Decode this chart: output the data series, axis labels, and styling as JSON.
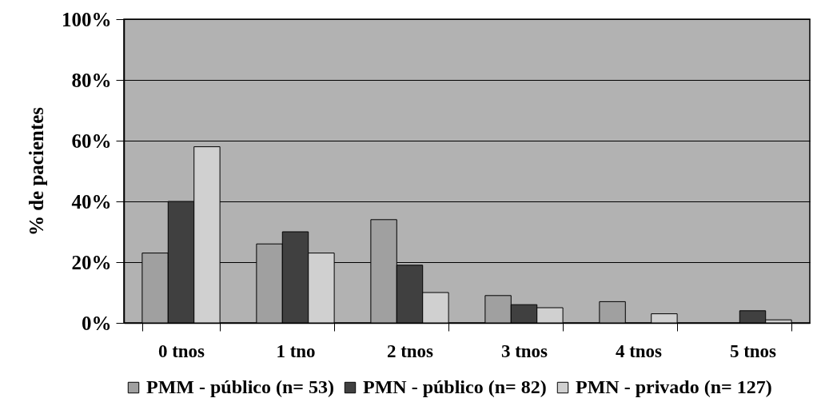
{
  "chart_data": {
    "type": "bar",
    "ylabel": "% de pacientes",
    "categories": [
      "0 tnos",
      "1 tno",
      "2 tnos",
      "3 tnos",
      "4 tnos",
      "5 tnos"
    ],
    "series": [
      {
        "name": "PMM - público (n= 53)",
        "color": "#a0a0a0",
        "values": [
          23,
          26,
          34,
          9,
          7,
          null
        ]
      },
      {
        "name": "PMN - público (n= 82)",
        "color": "#404040",
        "values": [
          40,
          30,
          19,
          6,
          null,
          4
        ]
      },
      {
        "name": "PMN - privado (n= 127)",
        "color": "#d0d0d0",
        "values": [
          58,
          23,
          10,
          5,
          3,
          1
        ]
      }
    ],
    "ylim": [
      0,
      100
    ],
    "yticks": [
      {
        "value": 0,
        "label": "0%"
      },
      {
        "value": 20,
        "label": "20%"
      },
      {
        "value": 40,
        "label": "40%"
      },
      {
        "value": 60,
        "label": "60%"
      },
      {
        "value": 80,
        "label": "80%"
      },
      {
        "value": 100,
        "label": "100%"
      }
    ],
    "grid": "y",
    "legend": "bottom"
  }
}
